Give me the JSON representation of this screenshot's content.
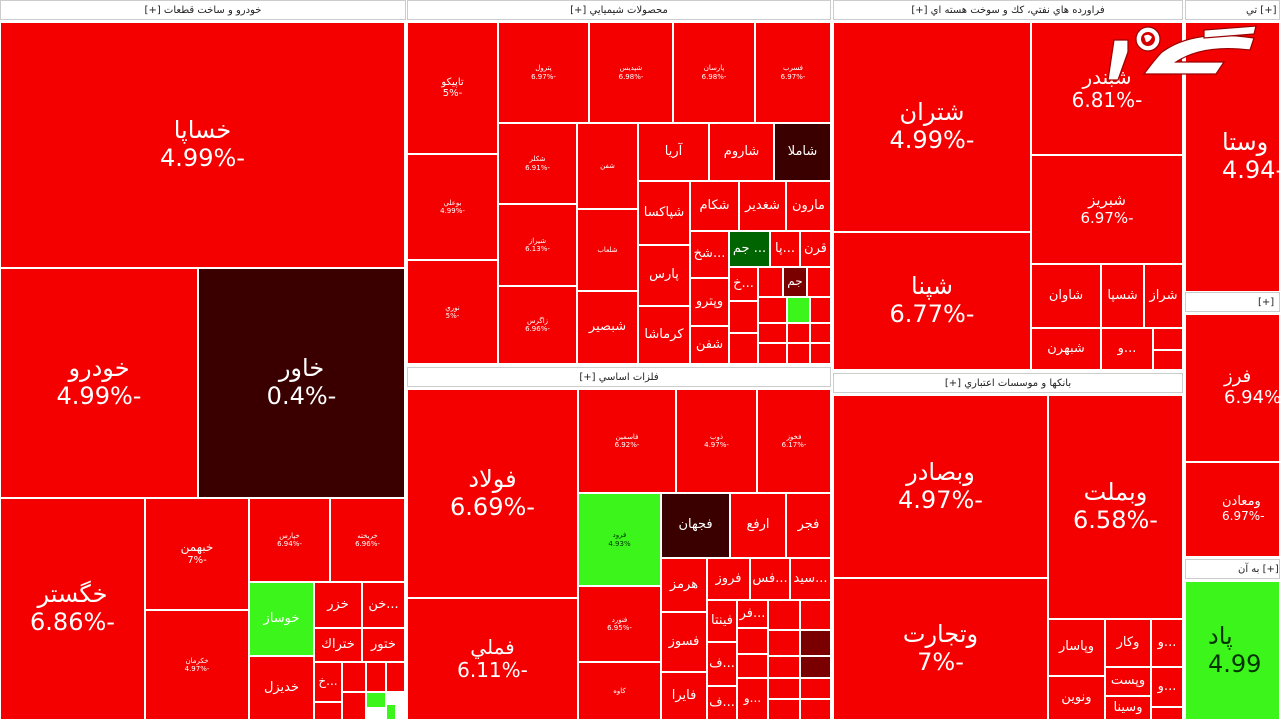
{
  "sectors": [
    {
      "id": "auto",
      "title": "خودرو و ساخت قطعات [+]"
    },
    {
      "id": "chem",
      "title": "محصولات شيميايي [+]"
    },
    {
      "id": "oil",
      "title": "فراورده هاي نفتي، كك و سوخت هسته اي [+]"
    },
    {
      "id": "metal",
      "title": "فلزات اساسي [+]"
    },
    {
      "id": "bank",
      "title": "بانكها و موسسات اعتباري [+]"
    },
    {
      "id": "edge1",
      "title": "[+] تي"
    },
    {
      "id": "edge2",
      "title": "[+]"
    },
    {
      "id": "edge3",
      "title": "[+] به آن"
    }
  ],
  "tiles": {
    "khasapa": {
      "name": "خساپا",
      "pct": "-4.99%"
    },
    "khodro": {
      "name": "خودرو",
      "pct": "-4.99%"
    },
    "khavar": {
      "name": "خاور",
      "pct": "-0.4%"
    },
    "khegostar": {
      "name": "خگستر",
      "pct": "-6.86%"
    },
    "khbahman": {
      "name": "خبهمن",
      "pct": "-7%"
    },
    "khkarman": {
      "name": "خكرمان",
      "pct": "-4.97%"
    },
    "auto_s1": {
      "name": "خپارس",
      "pct": "-6.94%"
    },
    "auto_s2": {
      "name": "خريخته",
      "pct": "-6.96%"
    },
    "khosaz": {
      "name": "خوساز"
    },
    "khazar": {
      "name": "خزر"
    },
    "khan": {
      "name": "...خن"
    },
    "khtrak": {
      "name": "ختراك"
    },
    "khtoor": {
      "name": "ختور"
    },
    "khdizel": {
      "name": "خديزل"
    },
    "khkh": {
      "name": "...خ"
    },
    "tapiko": {
      "name": "تاپيكو",
      "pct": "-5%"
    },
    "boali": {
      "name": "بوعلي",
      "pct": "-4.99%"
    },
    "noori": {
      "name": "نوري",
      "pct": "-5%"
    },
    "petrol": {
      "name": "پترول",
      "pct": "-6.97%"
    },
    "shebandar_c": {
      "name": "شپديس",
      "pct": "-6.98%"
    },
    "parsan": {
      "name": "پارسان",
      "pct": "-6.98%"
    },
    "fasra": {
      "name": "فسرب",
      "pct": "-6.97%"
    },
    "c_a": {
      "name": "شكلر",
      "pct": "-6.91%"
    },
    "c_b": {
      "name": "شيراز",
      "pct": "-6.13%"
    },
    "c_c": {
      "name": "زاگرس",
      "pct": "-6.96%"
    },
    "c_d": {
      "name": "شفن",
      "pct": "-6.9%"
    },
    "c_e": {
      "name": "شلعاب",
      "pct": "-6.9%"
    },
    "shebsir": {
      "name": "شبصير"
    },
    "arya": {
      "name": "آريا"
    },
    "sharoom": {
      "name": "شاروم"
    },
    "shamla": {
      "name": "شاملا"
    },
    "shaksa": {
      "name": "شپاكسا"
    },
    "shkam": {
      "name": "شكام"
    },
    "shghadir": {
      "name": "شغدير"
    },
    "maron": {
      "name": "مارون"
    },
    "pars": {
      "name": "پارس"
    },
    "kermasha": {
      "name": "كرماشا"
    },
    "shekh": {
      "name": "...شخ"
    },
    "jam_g": {
      "name": "... جم"
    },
    "pa": {
      "name": "...پا"
    },
    "qarn": {
      "name": "قرن"
    },
    "vipetro": {
      "name": "وپترو"
    },
    "khk": {
      "name": "...خ"
    },
    "jam": {
      "name": "جم"
    },
    "shefan": {
      "name": "شفن"
    },
    "shatran": {
      "name": "شتران",
      "pct": "-4.99%"
    },
    "shebandar": {
      "name": "شبندر",
      "pct": "-6.81%"
    },
    "shebriz": {
      "name": "شبريز",
      "pct": "-6.97%"
    },
    "shapna": {
      "name": "شپنا",
      "pct": "-6.77%"
    },
    "shavan": {
      "name": "شاوان"
    },
    "shesepa": {
      "name": "شسپا"
    },
    "sharaz": {
      "name": "شراز"
    },
    "shebahran": {
      "name": "شبهرن"
    },
    "vo": {
      "name": "...و"
    },
    "fooulad": {
      "name": "فولاد",
      "pct": "-6.69%"
    },
    "femli": {
      "name": "فملي",
      "pct": "-6.11%"
    },
    "kase": {
      "name": "فاسمين",
      "pct": "-6.92%"
    },
    "zob": {
      "name": "ذوب",
      "pct": "-4.97%"
    },
    "fkhooz": {
      "name": "فخوز",
      "pct": "-6.17%"
    },
    "foroo": {
      "name": "فرود",
      "pct": "4.93%"
    },
    "fajhan": {
      "name": "فجهان"
    },
    "arfa": {
      "name": "ارفع"
    },
    "fajr": {
      "name": "فجر"
    },
    "harmaz": {
      "name": "هرمز"
    },
    "frooz": {
      "name": "فروز"
    },
    "fes": {
      "name": "...فس"
    },
    "sid": {
      "name": "...سيد"
    },
    "m_s1": {
      "name": "فنورد",
      "pct": "-6.95%"
    },
    "m_s2": {
      "name": "كاوه",
      "pct": "-6.9%"
    },
    "fasoz": {
      "name": "فسوز"
    },
    "fenta": {
      "name": "فينتا"
    },
    "fera": {
      "name": "...فر"
    },
    "f2": {
      "name": "...ف"
    },
    "faira": {
      "name": "فايرا"
    },
    "f3": {
      "name": "...ف"
    },
    "f4": {
      "name": "...و"
    },
    "vbsader": {
      "name": "وبصادر",
      "pct": "-4.97%"
    },
    "vbmelat": {
      "name": "وبملت",
      "pct": "-6.58%"
    },
    "vtejarat": {
      "name": "وتجارت",
      "pct": "-7%"
    },
    "vpasar": {
      "name": "وپاسار"
    },
    "vkar": {
      "name": "وكار"
    },
    "vo2": {
      "name": "...و"
    },
    "vist": {
      "name": "وپست"
    },
    "vnovin": {
      "name": "ونوين"
    },
    "vsina": {
      "name": "وسينا"
    },
    "vo3": {
      "name": "...و"
    },
    "vo4": {
      "name": "...و"
    },
    "vsta": {
      "name": "وستا",
      "pct": "-4.94"
    },
    "ferz": {
      "name": "فرز",
      "pct": "-6.94%"
    },
    "vmaden": {
      "name": "ومعادن",
      "pct": "-6.97%"
    },
    "padd": {
      "name": "پاد",
      "pct": "4.99"
    }
  },
  "logo": {
    "alt": "رکنا"
  },
  "colors": {
    "red": "#f40000",
    "dark": "#3a0000",
    "maroon": "#7a0000",
    "green": "#3cf51a",
    "darkgreen": "#006400"
  }
}
